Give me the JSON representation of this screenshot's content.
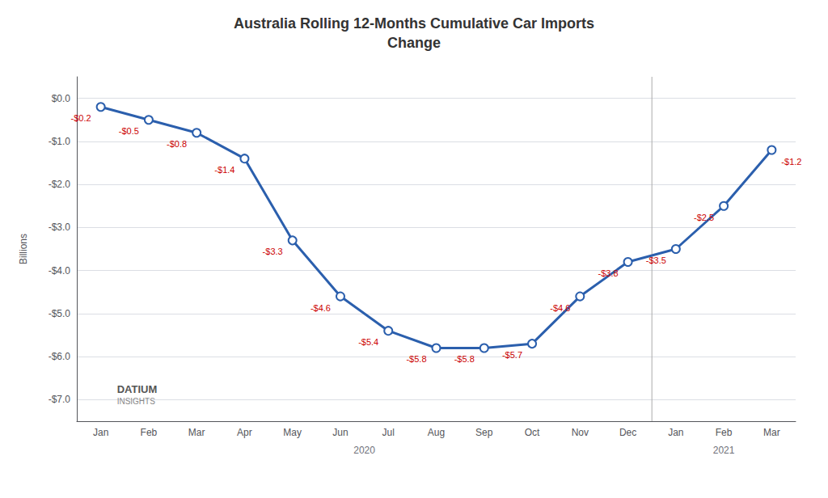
{
  "chart_data": {
    "type": "line",
    "title": "Australia Rolling 12-Months Cumulative Car Imports\nChange",
    "ylabel": "Billions",
    "categories": [
      "Jan",
      "Feb",
      "Mar",
      "Apr",
      "May",
      "Jun",
      "Jul",
      "Aug",
      "Sep",
      "Oct",
      "Nov",
      "Dec",
      "Jan",
      "Feb",
      "Mar"
    ],
    "values": [
      -0.2,
      -0.5,
      -0.8,
      -1.4,
      -3.3,
      -4.6,
      -5.4,
      -5.8,
      -5.8,
      -5.7,
      -4.6,
      -3.8,
      -3.5,
      -2.5,
      -1.2
    ],
    "value_labels": [
      "-$0.2",
      "-$0.5",
      "-$0.8",
      "-$1.4",
      "-$3.3",
      "-$4.6",
      "-$5.4",
      "-$5.8",
      "-$5.8",
      "-$5.7",
      "-$4.6",
      "-$3.8",
      "-$3.5",
      "-$2.5",
      "-$1.2"
    ],
    "data_labels": true,
    "color": "#2b5fad",
    "label_color": "#cc0000",
    "marker": "circle",
    "ylim": [
      -7.5,
      0.5
    ],
    "yticks": [
      {
        "value": 0.0,
        "label": "$0.0"
      },
      {
        "value": -1.0,
        "label": "-$1.0"
      },
      {
        "value": -2.0,
        "label": "-$2.0"
      },
      {
        "value": -3.0,
        "label": "-$3.0"
      },
      {
        "value": -4.0,
        "label": "-$4.0"
      },
      {
        "value": -5.0,
        "label": "-$5.0"
      },
      {
        "value": -6.0,
        "label": "-$6.0"
      },
      {
        "value": -7.0,
        "label": "-$7.0"
      }
    ],
    "grid": true,
    "x_groups": [
      "2020",
      "2021"
    ],
    "annotations": [
      "DATIUM",
      "INSIGHTS"
    ]
  }
}
